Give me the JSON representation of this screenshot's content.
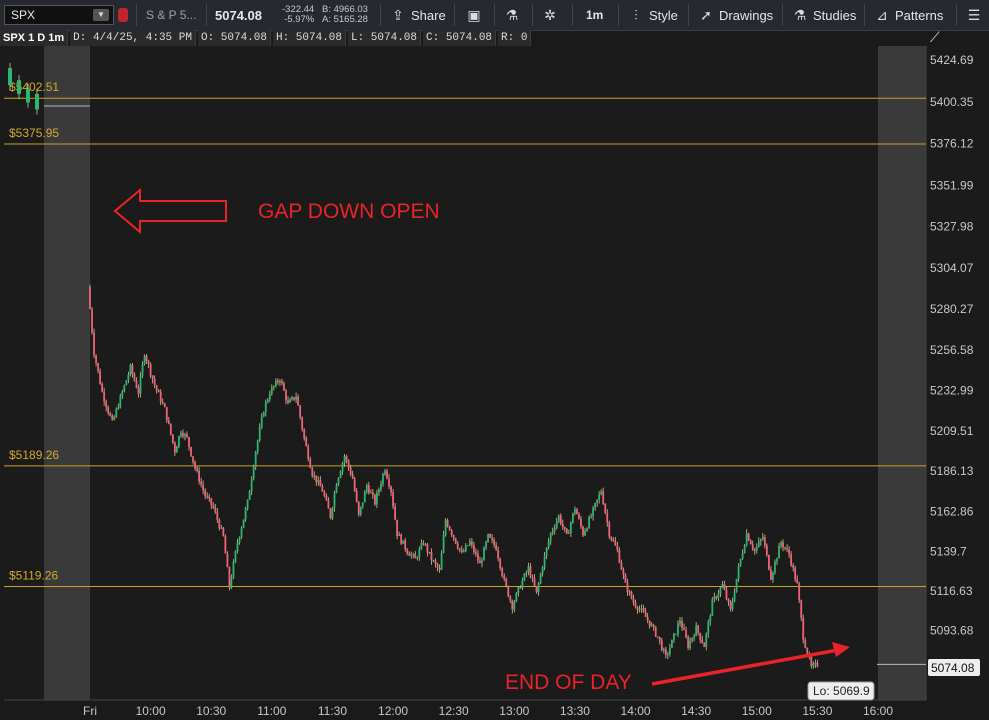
{
  "toolbar": {
    "symbol": "SPX",
    "description": "S & P 5...",
    "last": "5074.08",
    "net_change": "-322.44",
    "pct_change": "-5.97%",
    "bid": "B: 4966.03",
    "ask": "A: 5165.28",
    "share": "Share",
    "interval": "1m",
    "style": "Style",
    "drawings": "Drawings",
    "studies": "Studies",
    "patterns": "Patterns"
  },
  "info_bar": [
    "SPX 1 D 1m",
    "D: 4/4/25, 4:35 PM",
    "O: 5074.08",
    "H: 5074.08",
    "L: 5074.08",
    "C: 5074.08",
    "R: 0"
  ],
  "chart_data": {
    "type": "candlestick",
    "ylim": [
      5055,
      5435
    ],
    "y_ticks": [
      5424.69,
      5400.35,
      5376.12,
      5351.99,
      5327.98,
      5304.07,
      5280.27,
      5256.58,
      5232.99,
      5209.51,
      5186.13,
      5162.86,
      5139.7,
      5116.63,
      5093.68,
      5070.82
    ],
    "x_labels": [
      {
        "label": "Fri",
        "t": "09:30"
      },
      {
        "label": "10:00",
        "t": "10:00"
      },
      {
        "label": "10:30",
        "t": "10:30"
      },
      {
        "label": "11:00",
        "t": "11:00"
      },
      {
        "label": "11:30",
        "t": "11:30"
      },
      {
        "label": "12:00",
        "t": "12:00"
      },
      {
        "label": "12:30",
        "t": "12:30"
      },
      {
        "label": "13:00",
        "t": "13:00"
      },
      {
        "label": "13:30",
        "t": "13:30"
      },
      {
        "label": "14:00",
        "t": "14:00"
      },
      {
        "label": "14:30",
        "t": "14:30"
      },
      {
        "label": "15:00",
        "t": "15:00"
      },
      {
        "label": "15:30",
        "t": "15:30"
      },
      {
        "label": "16:00",
        "t": "16:00"
      }
    ],
    "levels": [
      {
        "label": "$5402.51",
        "value": 5402.51
      },
      {
        "label": "$5375.95",
        "value": 5375.95
      },
      {
        "label": "$5189.26",
        "value": 5189.26
      },
      {
        "label": "$5119.26",
        "value": 5119.26
      }
    ],
    "annotations": {
      "gap": "GAP DOWN OPEN",
      "eod": "END OF DAY",
      "low": "Lo: 5069.9",
      "last": "5074.08"
    },
    "premarket": [
      [
        5420,
        5410
      ],
      [
        5413,
        5405
      ],
      [
        5408,
        5400
      ],
      [
        5405,
        5396
      ]
    ],
    "path": [
      [
        "09:30",
        5293
      ],
      [
        "09:33",
        5255
      ],
      [
        "09:37",
        5232
      ],
      [
        "09:42",
        5214
      ],
      [
        "09:47",
        5232
      ],
      [
        "09:51",
        5246
      ],
      [
        "09:55",
        5232
      ],
      [
        "09:58",
        5255
      ],
      [
        "10:03",
        5236
      ],
      [
        "10:08",
        5222
      ],
      [
        "10:13",
        5198
      ],
      [
        "10:16",
        5210
      ],
      [
        "10:19",
        5205
      ],
      [
        "10:23",
        5188
      ],
      [
        "10:28",
        5172
      ],
      [
        "10:32",
        5165
      ],
      [
        "10:37",
        5148
      ],
      [
        "10:40",
        5119
      ],
      [
        "10:44",
        5145
      ],
      [
        "10:49",
        5168
      ],
      [
        "10:53",
        5198
      ],
      [
        "10:57",
        5222
      ],
      [
        "11:00",
        5232
      ],
      [
        "11:05",
        5240
      ],
      [
        "11:09",
        5225
      ],
      [
        "11:13",
        5230
      ],
      [
        "11:17",
        5205
      ],
      [
        "11:21",
        5185
      ],
      [
        "11:26",
        5175
      ],
      [
        "11:30",
        5160
      ],
      [
        "11:33",
        5180
      ],
      [
        "11:37",
        5195
      ],
      [
        "11:41",
        5182
      ],
      [
        "11:44",
        5160
      ],
      [
        "11:48",
        5178
      ],
      [
        "11:52",
        5168
      ],
      [
        "11:57",
        5188
      ],
      [
        "12:00",
        5175
      ],
      [
        "12:03",
        5150
      ],
      [
        "12:08",
        5140
      ],
      [
        "12:12",
        5135
      ],
      [
        "12:16",
        5145
      ],
      [
        "12:20",
        5135
      ],
      [
        "12:24",
        5128
      ],
      [
        "12:27",
        5158
      ],
      [
        "12:31",
        5148
      ],
      [
        "12:35",
        5138
      ],
      [
        "12:39",
        5145
      ],
      [
        "12:44",
        5132
      ],
      [
        "12:48",
        5148
      ],
      [
        "12:52",
        5142
      ],
      [
        "12:56",
        5122
      ],
      [
        "13:00",
        5108
      ],
      [
        "13:04",
        5120
      ],
      [
        "13:08",
        5130
      ],
      [
        "13:12",
        5115
      ],
      [
        "13:15",
        5132
      ],
      [
        "13:19",
        5150
      ],
      [
        "13:23",
        5160
      ],
      [
        "13:27",
        5148
      ],
      [
        "13:31",
        5165
      ],
      [
        "13:35",
        5150
      ],
      [
        "13:39",
        5160
      ],
      [
        "13:44",
        5175
      ],
      [
        "13:48",
        5150
      ],
      [
        "13:52",
        5140
      ],
      [
        "13:56",
        5120
      ],
      [
        "14:00",
        5110
      ],
      [
        "14:04",
        5105
      ],
      [
        "14:08",
        5098
      ],
      [
        "14:12",
        5090
      ],
      [
        "14:16",
        5078
      ],
      [
        "14:20",
        5090
      ],
      [
        "14:23",
        5100
      ],
      [
        "14:27",
        5085
      ],
      [
        "14:31",
        5095
      ],
      [
        "14:35",
        5085
      ],
      [
        "14:39",
        5110
      ],
      [
        "14:44",
        5120
      ],
      [
        "14:48",
        5105
      ],
      [
        "14:52",
        5130
      ],
      [
        "14:56",
        5150
      ],
      [
        "15:00",
        5140
      ],
      [
        "15:04",
        5148
      ],
      [
        "15:08",
        5125
      ],
      [
        "15:13",
        5145
      ],
      [
        "15:17",
        5138
      ],
      [
        "15:21",
        5120
      ],
      [
        "15:24",
        5090
      ],
      [
        "15:28",
        5072
      ],
      [
        "15:31",
        5074.08
      ]
    ]
  }
}
